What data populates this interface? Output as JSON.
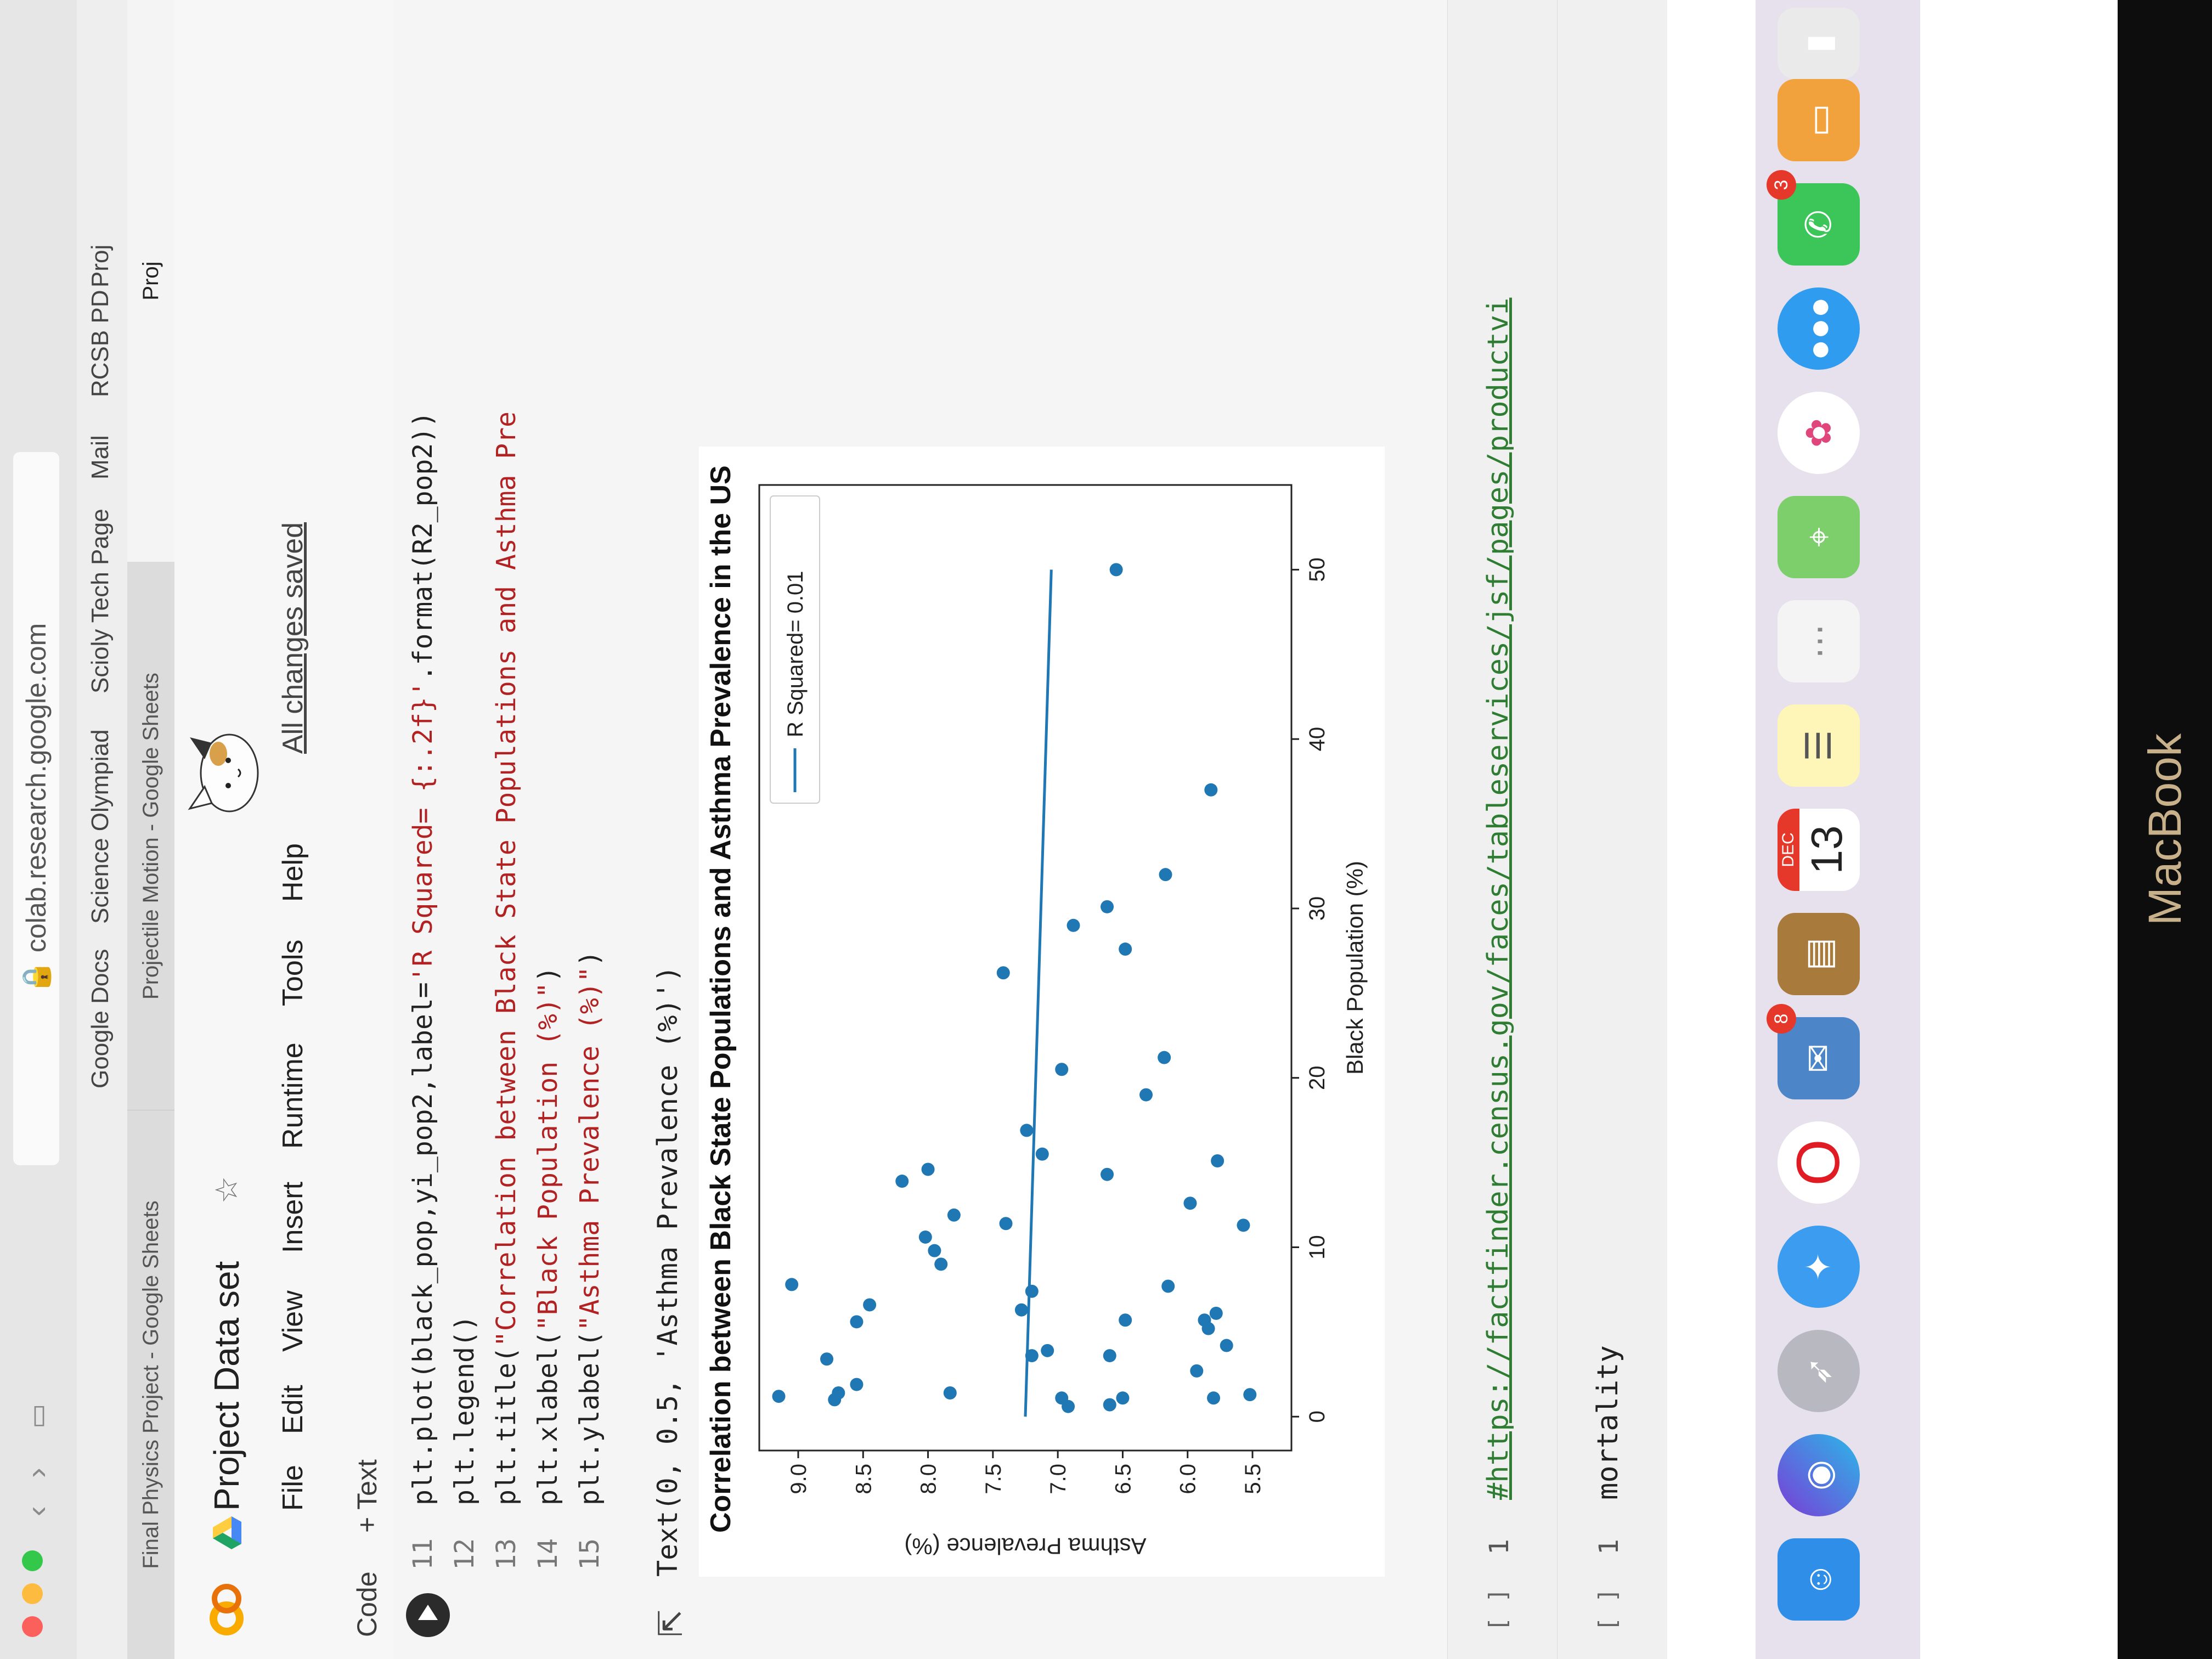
{
  "browser": {
    "url": "colab.research.google.com",
    "bookmarks": [
      "Google Docs",
      "Science Olympiad",
      "Scioly Tech Page",
      "Mail",
      "RCSB PD",
      "Proj"
    ],
    "tabs": [
      "Final Physics Project - Google Sheets",
      "Projectile Motion - Google Sheets",
      "Proj"
    ]
  },
  "notebook": {
    "title": "Project Data set",
    "menu": [
      "File",
      "Edit",
      "View",
      "Insert",
      "Runtime",
      "Tools",
      "Help"
    ],
    "save_status": "All changes saved",
    "toolbar": {
      "code_label": "Code",
      "text_label": "+ Text"
    }
  },
  "code_cell": {
    "lines": [
      {
        "n": "11",
        "parts": [
          [
            "plt.plot(black_pop,yi_pop2,label=",
            ""
          ],
          [
            "'R Squared= {:.2f}'",
            "str"
          ],
          [
            ".format(R2_pop2))",
            ""
          ]
        ]
      },
      {
        "n": "12",
        "parts": [
          [
            "plt.legend()",
            ""
          ]
        ]
      },
      {
        "n": "13",
        "parts": [
          [
            "plt.title(",
            ""
          ],
          [
            "\"Correlation between Black State Populations and Asthma Pre",
            "str"
          ]
        ]
      },
      {
        "n": "14",
        "parts": [
          [
            "plt.xlabel(",
            ""
          ],
          [
            "\"Black Population (%)\"",
            "str"
          ],
          [
            ")",
            ""
          ]
        ]
      },
      {
        "n": "15",
        "parts": [
          [
            "plt.ylabel(",
            ""
          ],
          [
            "\"Asthma Prevalence (%)\"",
            "str"
          ],
          [
            ")",
            ""
          ]
        ]
      }
    ],
    "output_text": "Text(0, 0.5, 'Asthma Prevalence (%)')"
  },
  "chart_data": {
    "type": "scatter",
    "title": "Correlation between Black State Populations and Asthma Prevalence in the US",
    "xlabel": "Black Population (%)",
    "ylabel": "Asthma Prevalence (%)",
    "xlim": [
      -2,
      55
    ],
    "ylim": [
      5.2,
      9.3
    ],
    "xticks": [
      0,
      10,
      20,
      30,
      40,
      50
    ],
    "yticks": [
      5.5,
      6.0,
      6.5,
      7.0,
      7.5,
      8.0,
      8.5,
      9.0
    ],
    "legend": {
      "label": "R Squared= 0.01",
      "placement": "upper right"
    },
    "grid": false,
    "color": "#1f77b4",
    "points": [
      [
        1.2,
        9.15
      ],
      [
        7.8,
        9.05
      ],
      [
        1.0,
        8.72
      ],
      [
        3.4,
        8.78
      ],
      [
        5.6,
        8.55
      ],
      [
        6.6,
        8.45
      ],
      [
        1.4,
        8.69
      ],
      [
        1.9,
        8.55
      ],
      [
        13.9,
        8.2
      ],
      [
        14.6,
        8.0
      ],
      [
        10.6,
        8.02
      ],
      [
        9.8,
        7.95
      ],
      [
        9.0,
        7.9
      ],
      [
        11.9,
        7.8
      ],
      [
        1.4,
        7.83
      ],
      [
        26.2,
        7.42
      ],
      [
        11.4,
        7.4
      ],
      [
        16.9,
        7.24
      ],
      [
        15.5,
        7.12
      ],
      [
        6.3,
        7.28
      ],
      [
        7.4,
        7.2
      ],
      [
        3.6,
        7.2
      ],
      [
        3.9,
        7.08
      ],
      [
        20.5,
        6.97
      ],
      [
        29.0,
        6.88
      ],
      [
        1.1,
        6.97
      ],
      [
        0.6,
        6.92
      ],
      [
        14.3,
        6.62
      ],
      [
        30.1,
        6.62
      ],
      [
        3.6,
        6.6
      ],
      [
        0.7,
        6.6
      ],
      [
        1.1,
        6.5
      ],
      [
        5.7,
        6.48
      ],
      [
        27.6,
        6.48
      ],
      [
        19.0,
        6.32
      ],
      [
        21.2,
        6.18
      ],
      [
        7.7,
        6.15
      ],
      [
        32.0,
        6.17
      ],
      [
        12.6,
        5.98
      ],
      [
        2.7,
        5.93
      ],
      [
        5.7,
        5.87
      ],
      [
        5.2,
        5.84
      ],
      [
        1.1,
        5.8
      ],
      [
        6.1,
        5.78
      ],
      [
        15.1,
        5.77
      ],
      [
        4.2,
        5.7
      ],
      [
        11.3,
        5.57
      ],
      [
        1.3,
        5.52
      ],
      [
        50.0,
        6.55
      ],
      [
        37.0,
        5.82
      ]
    ],
    "fit_line": {
      "x": [
        0,
        50
      ],
      "y": [
        7.25,
        7.05
      ]
    }
  },
  "url_cell": {
    "bracket": "[ ]",
    "line": "1",
    "code": "#https://factfinder.census.gov/faces/tableservices/jsf/pages/productvi"
  },
  "mort_cell": {
    "bracket": "[ ]",
    "line": "1",
    "code": "mortality"
  },
  "dock": {
    "badges": {
      "mail": "8",
      "messages": "3"
    },
    "calendar": {
      "month": "DEC",
      "day": "13"
    }
  },
  "bezel_label": "MacBook"
}
